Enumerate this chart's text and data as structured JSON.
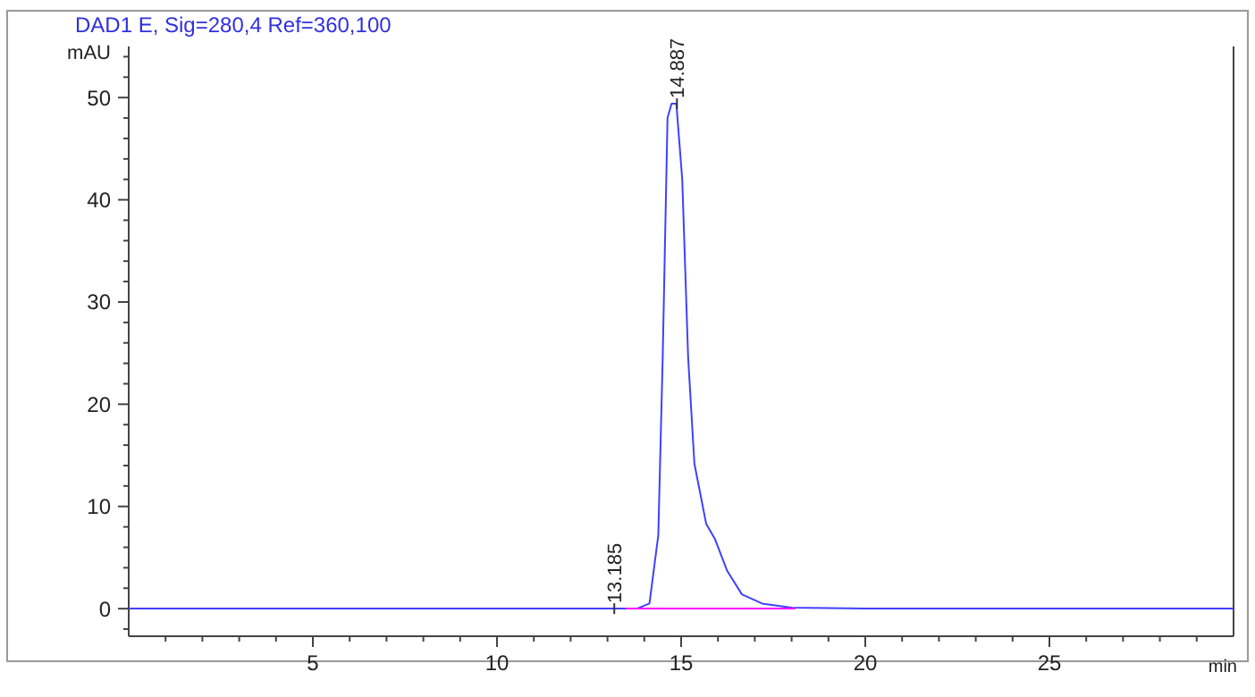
{
  "chart_data": {
    "type": "line",
    "title": "DAD1 E, Sig=280,4 Ref=360,100",
    "xlabel": "min",
    "ylabel": "mAU",
    "xlim": [
      0,
      30
    ],
    "ylim": [
      -2.7,
      55
    ],
    "xticks": [
      {
        "value": 1,
        "label": null
      },
      {
        "value": 2,
        "label": null
      },
      {
        "value": 3,
        "label": null
      },
      {
        "value": 4,
        "label": null
      },
      5,
      {
        "value": 6,
        "label": null
      },
      {
        "value": 7,
        "label": null
      },
      {
        "value": 8,
        "label": null
      },
      {
        "value": 9,
        "label": null
      },
      10,
      {
        "value": 11,
        "label": null
      },
      {
        "value": 12,
        "label": null
      },
      {
        "value": 13,
        "label": null
      },
      {
        "value": 14,
        "label": null
      },
      15,
      {
        "value": 16,
        "label": null
      },
      {
        "value": 17,
        "label": null
      },
      {
        "value": 18,
        "label": null
      },
      {
        "value": 19,
        "label": null
      },
      20,
      {
        "value": 21,
        "label": null
      },
      {
        "value": 22,
        "label": null
      },
      {
        "value": 23,
        "label": null
      },
      {
        "value": 24,
        "label": null
      },
      25,
      {
        "value": 26,
        "label": null
      },
      {
        "value": 27,
        "label": null
      },
      {
        "value": 28,
        "label": null
      },
      {
        "value": 29,
        "label": null
      }
    ],
    "yticks": [
      {
        "value": -2,
        "label": null
      },
      0,
      {
        "value": 2,
        "label": null
      },
      {
        "value": 4,
        "label": null
      },
      {
        "value": 6,
        "label": null
      },
      {
        "value": 8,
        "label": null
      },
      10,
      {
        "value": 12,
        "label": null
      },
      {
        "value": 14,
        "label": null
      },
      {
        "value": 16,
        "label": null
      },
      {
        "value": 18,
        "label": null
      },
      20,
      {
        "value": 22,
        "label": null
      },
      {
        "value": 24,
        "label": null
      },
      {
        "value": 26,
        "label": null
      },
      {
        "value": 28,
        "label": null
      },
      30,
      {
        "value": 32,
        "label": null
      },
      {
        "value": 34,
        "label": null
      },
      {
        "value": 36,
        "label": null
      },
      {
        "value": 38,
        "label": null
      },
      40,
      {
        "value": 42,
        "label": null
      },
      {
        "value": 44,
        "label": null
      },
      {
        "value": 46,
        "label": null
      },
      {
        "value": 48,
        "label": null
      },
      50,
      {
        "value": 52,
        "label": null
      },
      {
        "value": 54,
        "label": null
      }
    ],
    "marker": "none",
    "line_style": "solid",
    "series": [
      {
        "color": "#4040ff",
        "x": [
          0,
          5,
          10,
          13,
          13.8,
          14.14,
          14.38,
          14.5,
          14.63,
          14.74,
          14.87,
          15.03,
          15.19,
          15.36,
          15.68,
          15.92,
          16.25,
          16.65,
          17.2,
          18.0,
          20,
          25,
          30
        ],
        "values": [
          0,
          0,
          0,
          0,
          0,
          0.5,
          7.2,
          24.6,
          48,
          49.4,
          49.4,
          42,
          24.6,
          14.2,
          8.3,
          6.8,
          3.7,
          1.4,
          0.5,
          0.1,
          0,
          0,
          0
        ]
      },
      {
        "color": "#ff00ff",
        "x": [
          13.5,
          18.1
        ],
        "values": [
          0,
          0
        ]
      }
    ],
    "annotations": [
      {
        "text": "13.185",
        "x": 13.185,
        "y": 0
      },
      {
        "text": "14.887",
        "x": 14.887,
        "y": 49.4
      }
    ]
  }
}
